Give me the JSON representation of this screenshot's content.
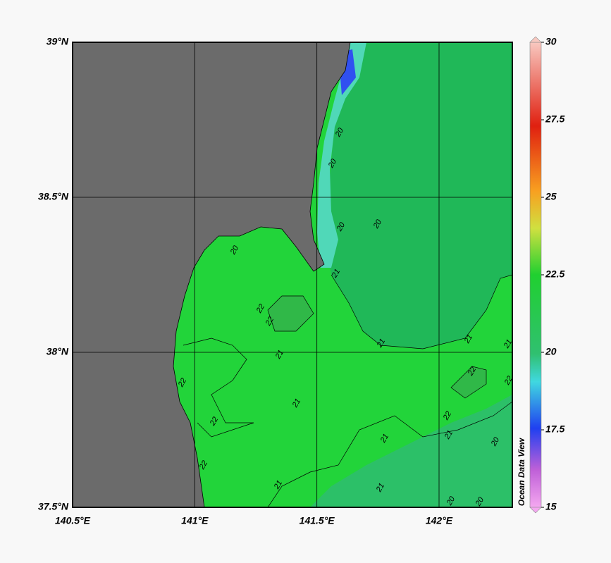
{
  "map": {
    "xlim": [
      140.5,
      142.3
    ],
    "ylim": [
      37.5,
      39
    ],
    "xticks": [
      {
        "value": 140.5,
        "label": "140.5°E"
      },
      {
        "value": 141,
        "label": "141°E"
      },
      {
        "value": 141.5,
        "label": "141.5°E"
      },
      {
        "value": 142,
        "label": "142°E"
      }
    ],
    "yticks": [
      {
        "value": 37.5,
        "label": "37.5°N"
      },
      {
        "value": 38,
        "label": "38°N"
      },
      {
        "value": 38.5,
        "label": "38.5°N"
      },
      {
        "value": 39,
        "label": "39°N"
      }
    ],
    "colorbar": {
      "lim": [
        15,
        30
      ],
      "ticks": [
        15,
        17.5,
        20,
        22.5,
        25,
        27.5,
        30
      ],
      "label": "Ocean Data View"
    },
    "contour_labels": [
      "20",
      "20",
      "20",
      "20",
      "20",
      "21",
      "22",
      "22",
      "21",
      "21",
      "21",
      "21",
      "22",
      "22",
      "22",
      "21",
      "21",
      "21",
      "22",
      "20",
      "22",
      "21",
      "21",
      "20",
      "20",
      "22"
    ]
  }
}
